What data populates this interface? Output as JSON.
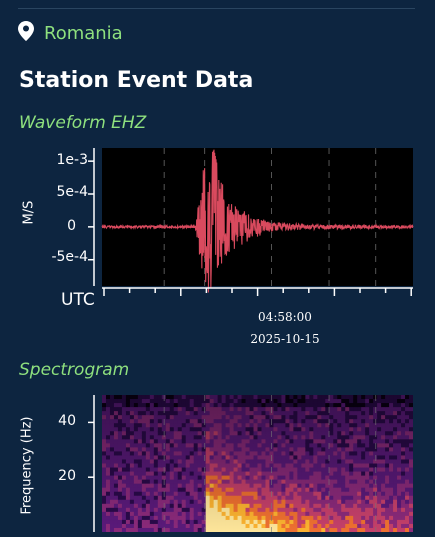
{
  "location": {
    "icon": "map-pin-icon",
    "name": "Romania",
    "color": "#8ee07e"
  },
  "section_title": "Station Event Data",
  "waveform": {
    "heading": "Waveform EHZ",
    "ylabel": "M/S",
    "xlabel": "UTC",
    "center_time": "04:58:00",
    "center_date": "2025-10-15"
  },
  "spectrogram": {
    "heading": "Spectrogram",
    "ylabel": "Frequency (Hz)"
  },
  "chart_data": [
    {
      "type": "line",
      "title": "Waveform EHZ",
      "ylabel": "M/S",
      "xlabel": "UTC",
      "y_ticks": [
        "1e-3",
        "5e-4",
        "0",
        "-5e-4"
      ],
      "y_tick_values": [
        0.001,
        0.0005,
        0,
        -0.0005
      ],
      "ylim": [
        -0.0009,
        0.0012
      ],
      "x_center_label": "04:58:00",
      "x_date_label": "2025-10-15",
      "line_color": "#d94a5e",
      "series": [
        {
          "envelope": [
            {
              "t": 0.0,
              "amp": 2e-05
            },
            {
              "t": 0.3,
              "amp": 2e-05
            },
            {
              "t": 0.325,
              "amp": 0.0009
            },
            {
              "t": 0.36,
              "amp": 0.0012
            },
            {
              "t": 0.38,
              "amp": 0.00075
            },
            {
              "t": 0.42,
              "amp": 0.0004
            },
            {
              "t": 0.48,
              "amp": 0.00018
            },
            {
              "t": 0.55,
              "amp": 8e-05
            },
            {
              "t": 0.65,
              "amp": 4e-05
            },
            {
              "t": 1.0,
              "amp": 2e-05
            }
          ]
        }
      ]
    },
    {
      "type": "heatmap",
      "title": "Spectrogram",
      "ylabel": "Frequency (Hz)",
      "y_ticks": [
        "40",
        "20"
      ],
      "y_tick_values": [
        40,
        20
      ],
      "ylim": [
        0,
        50
      ],
      "event_onset_fraction": 0.33,
      "colormap": [
        "#0a0014",
        "#2a0a4a",
        "#5a1a7a",
        "#8a2a7a",
        "#c4406a",
        "#ee7030",
        "#fbb230",
        "#fde59a"
      ]
    }
  ]
}
